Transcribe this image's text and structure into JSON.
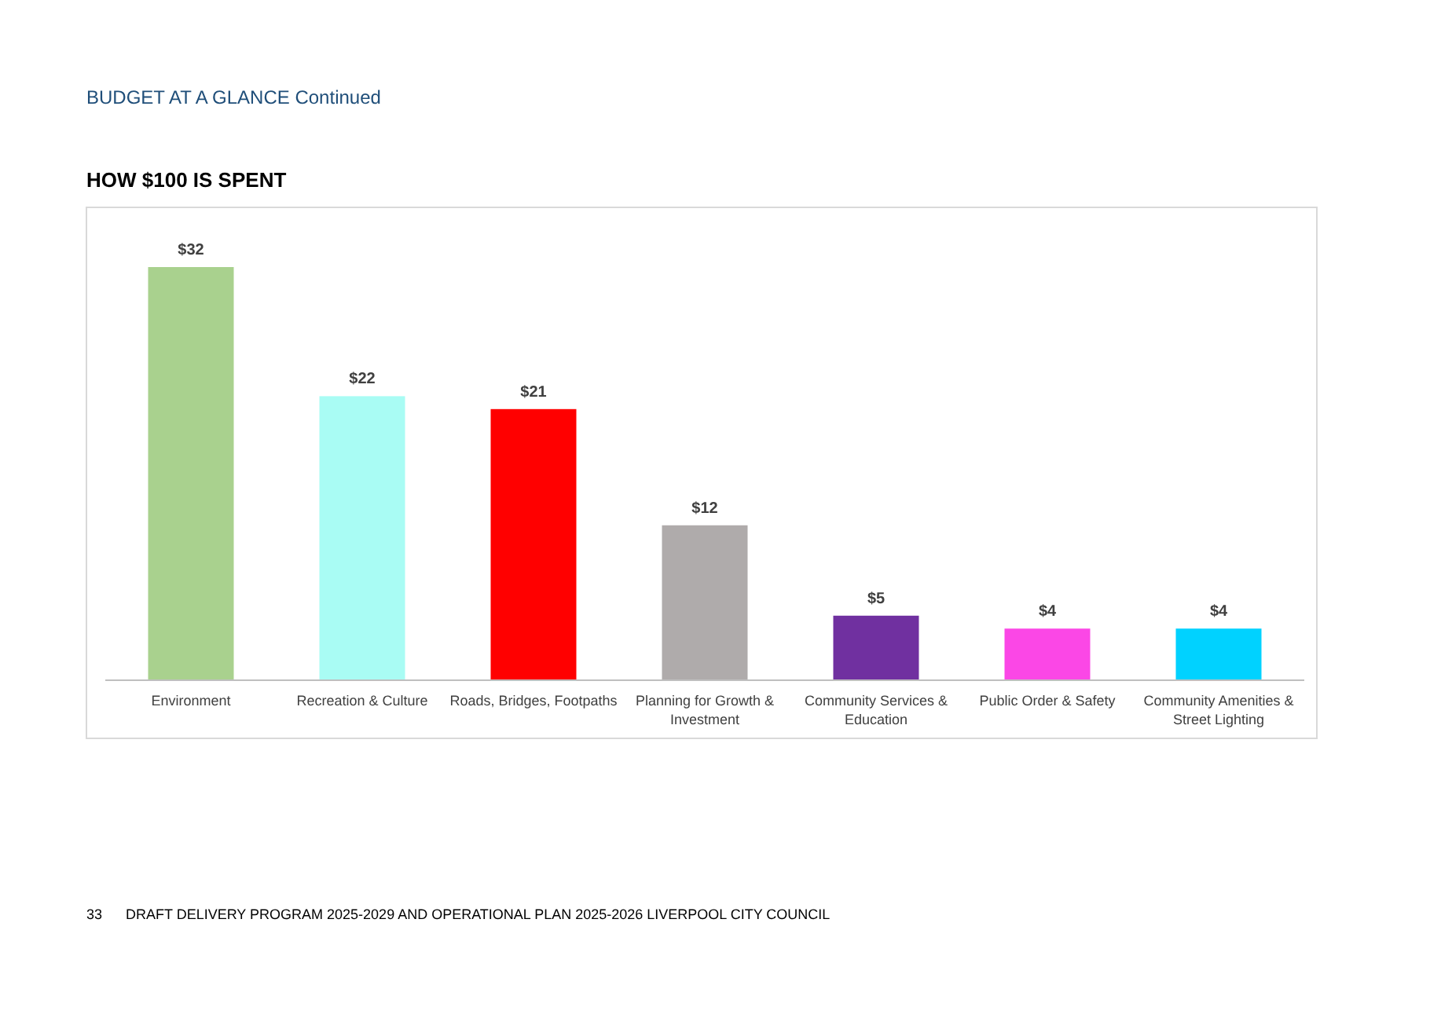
{
  "chart_data": {
    "type": "bar",
    "title": "HOW $100 IS SPENT",
    "annotations": [
      "BUDGET AT A GLANCE Continued",
      "33",
      "DRAFT DELIVERY PROGRAM 2025-2029 AND OPERATIONAL PLAN 2025-2026 LIVERPOOL CITY COUNCIL"
    ],
    "categories": [
      "Environment",
      "Recreation & Culture",
      "Roads, Bridges, Footpaths",
      "Planning for Growth & Investment",
      "Community Services & Education",
      "Public Order & Safety",
      "Community Amenities & Street Lighting"
    ],
    "values": [
      32,
      22,
      21,
      12,
      5,
      4,
      4
    ],
    "colors": [
      "#a9d18e",
      "#a9fcf4",
      "#ff0000",
      "#afabab",
      "#7030a0",
      "#fb47e6",
      "#00d2ff"
    ],
    "value_labels": [
      "$32",
      "$22",
      "$21",
      "$12",
      "$5",
      "$4",
      "$4"
    ]
  }
}
